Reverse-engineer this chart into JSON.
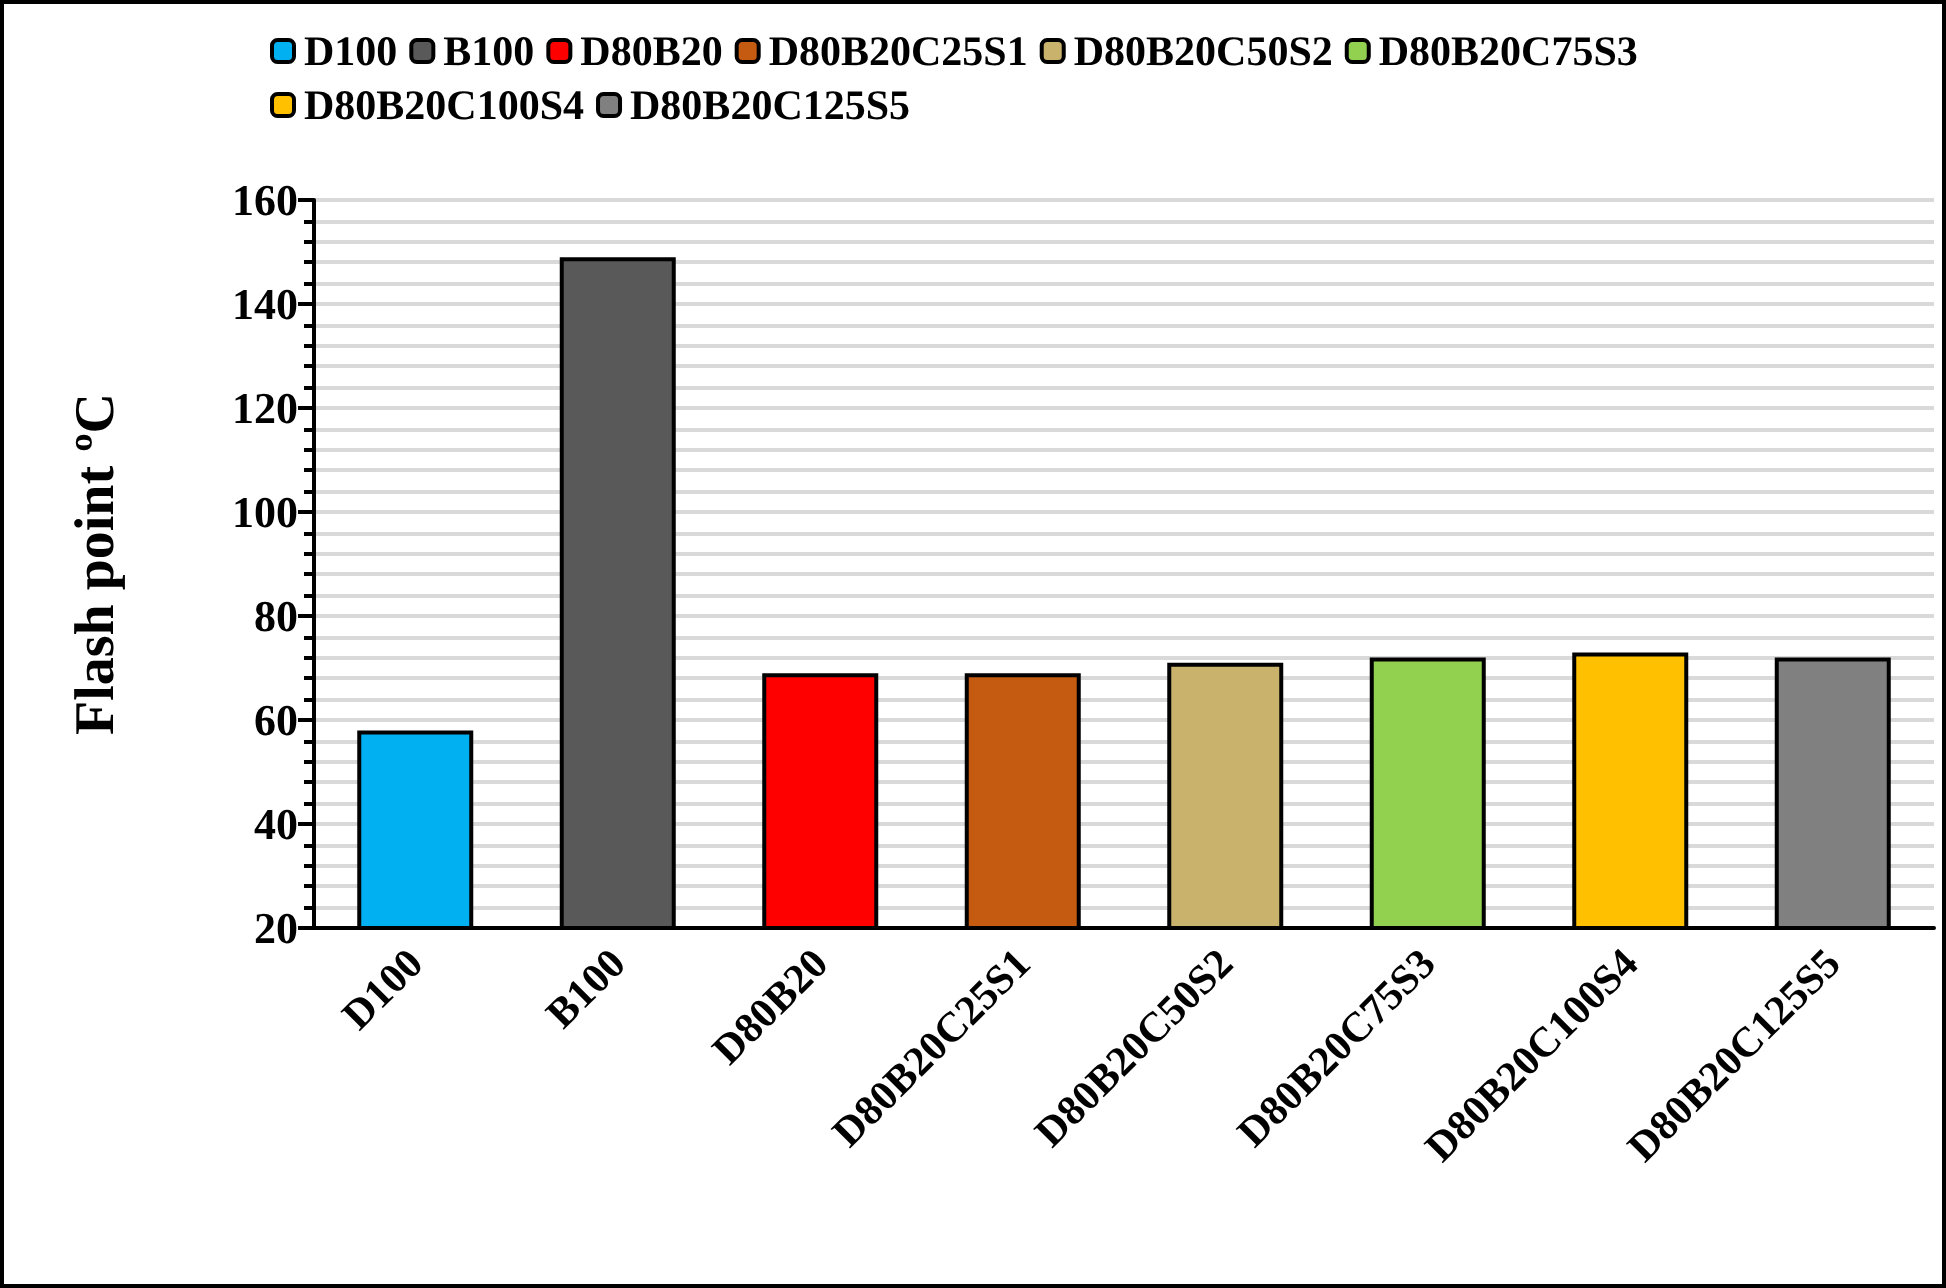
{
  "chart_data": {
    "type": "bar",
    "ylabel": "Flash point ºC",
    "categories": [
      "D100",
      "B100",
      "D80B20",
      "D80B20C25S1",
      "D80B20C50S2",
      "D80B20C75S3",
      "D80B20C100S4",
      "D80B20C125S5"
    ],
    "series": [
      {
        "name": "D100",
        "color": "#00b0f0",
        "values": [
          58,
          null,
          null,
          null,
          null,
          null,
          null,
          null
        ]
      },
      {
        "name": "B100",
        "color": "#595959",
        "values": [
          null,
          149,
          null,
          null,
          null,
          null,
          null,
          null
        ]
      },
      {
        "name": "D80B20",
        "color": "#ff0000",
        "values": [
          null,
          null,
          69,
          null,
          null,
          null,
          null,
          null
        ]
      },
      {
        "name": "D80B20C25S1",
        "color": "#c55a11",
        "values": [
          null,
          null,
          null,
          69,
          null,
          null,
          null,
          null
        ]
      },
      {
        "name": "D80B20C50S2",
        "color": "#c9b26b",
        "values": [
          null,
          null,
          null,
          null,
          71,
          null,
          null,
          null
        ]
      },
      {
        "name": "D80B20C75S3",
        "color": "#92d050",
        "values": [
          null,
          null,
          null,
          null,
          null,
          72,
          null,
          null
        ]
      },
      {
        "name": "D80B20C100S4",
        "color": "#ffc000",
        "values": [
          null,
          null,
          null,
          null,
          null,
          null,
          73,
          null
        ]
      },
      {
        "name": "D80B20C125S5",
        "color": "#808080",
        "values": [
          null,
          null,
          null,
          null,
          null,
          null,
          null,
          72
        ]
      }
    ],
    "ylim": [
      20,
      160
    ],
    "yticks": [
      20,
      40,
      60,
      80,
      100,
      120,
      140,
      160
    ],
    "grid": true,
    "legend": "top",
    "stacked": true
  }
}
